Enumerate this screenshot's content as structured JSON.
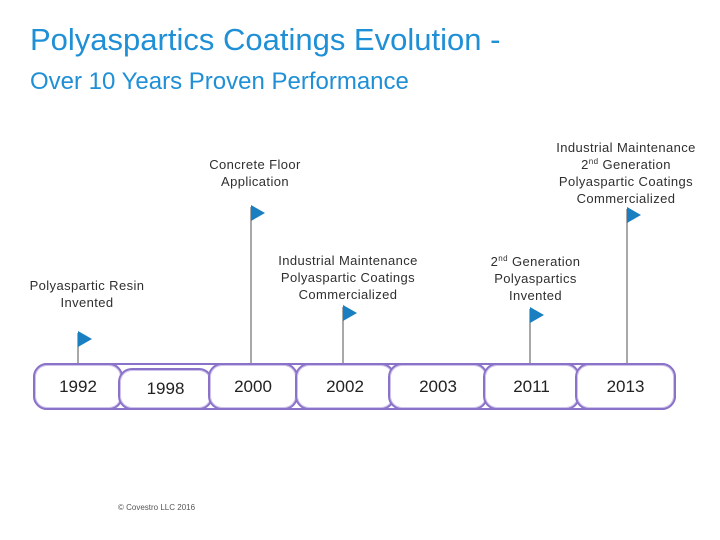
{
  "slide": {
    "title": "Polyaspartics Coatings Evolution -",
    "subtitle": "Over 10 Years Proven Performance",
    "copyright": "© Covestro LLC 2016"
  },
  "milestones": {
    "resin": {
      "line1": "Polyaspartic Resin",
      "line2": "Invented"
    },
    "concrete": {
      "line1": "Concrete Floor",
      "line2": "Application"
    },
    "industrial": {
      "line1": "Industrial Maintenance",
      "line2": "Polyaspartic Coatings",
      "line3": "Commercialized"
    },
    "gen2": {
      "line1_sup": "nd",
      "line1_num": "2",
      "line1_rest": " Generation",
      "line2": "Polyaspartics",
      "line3": "Invented"
    },
    "industrial_gen2": {
      "line1": "Industrial Maintenance",
      "line2_num": "2",
      "line2_sup": "nd",
      "line2_rest": " Generation",
      "line3": "Polyaspartic Coatings",
      "line4": "Commercialized"
    }
  },
  "timeline": {
    "years": [
      "1992",
      "1998",
      "2000",
      "2002",
      "2003",
      "2011",
      "2013"
    ]
  },
  "colors": {
    "title": "#1f8fd6",
    "flag": "#1a7fc1",
    "pole": "#a8a8a8",
    "border": "#8a72c9"
  }
}
